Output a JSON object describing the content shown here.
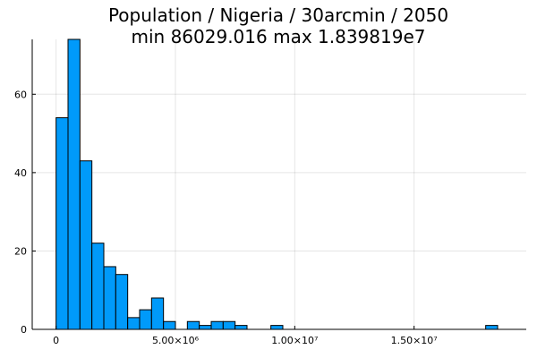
{
  "chart_data": {
    "type": "bar",
    "subtype": "histogram",
    "title_lines": [
      "Population / Nigeria / 30arcmin / 2050",
      "min 86029.016  max 1.839819e7"
    ],
    "xlabel": "",
    "ylabel": "",
    "bar_color": "#009AFA",
    "bin_width": 500000,
    "xlim": [
      -1000000,
      19700000
    ],
    "ylim": [
      0,
      74
    ],
    "grid": true,
    "legend": "none",
    "bins": [
      {
        "start": 0,
        "count": 54
      },
      {
        "start": 500000,
        "count": 74
      },
      {
        "start": 1000000,
        "count": 43
      },
      {
        "start": 1500000,
        "count": 22
      },
      {
        "start": 2000000,
        "count": 16
      },
      {
        "start": 2500000,
        "count": 14
      },
      {
        "start": 3000000,
        "count": 3
      },
      {
        "start": 3500000,
        "count": 5
      },
      {
        "start": 4000000,
        "count": 8
      },
      {
        "start": 4500000,
        "count": 2
      },
      {
        "start": 5000000,
        "count": 0
      },
      {
        "start": 5500000,
        "count": 2
      },
      {
        "start": 6000000,
        "count": 1
      },
      {
        "start": 6500000,
        "count": 2
      },
      {
        "start": 7000000,
        "count": 2
      },
      {
        "start": 7500000,
        "count": 1
      },
      {
        "start": 9000000,
        "count": 1
      },
      {
        "start": 18000000,
        "count": 1
      }
    ],
    "x_ticks": [
      {
        "value": 0,
        "label": "0"
      },
      {
        "value": 5000000,
        "label": "5.00×10⁶"
      },
      {
        "value": 10000000,
        "label": "1.00×10⁷"
      },
      {
        "value": 15000000,
        "label": "1.50×10⁷"
      }
    ],
    "y_ticks": [
      {
        "value": 0,
        "label": "0"
      },
      {
        "value": 20,
        "label": "20"
      },
      {
        "value": 40,
        "label": "40"
      },
      {
        "value": 60,
        "label": "60"
      }
    ]
  }
}
